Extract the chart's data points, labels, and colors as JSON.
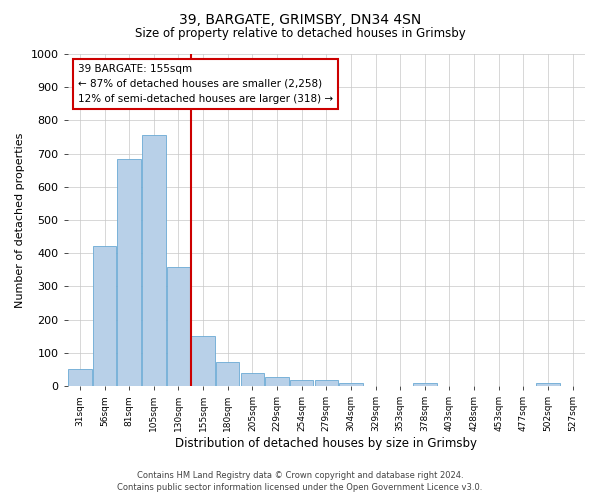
{
  "title": "39, BARGATE, GRIMSBY, DN34 4SN",
  "subtitle": "Size of property relative to detached houses in Grimsby",
  "xlabel": "Distribution of detached houses by size in Grimsby",
  "ylabel": "Number of detached properties",
  "bar_color": "#b8d0e8",
  "bar_edge_color": "#6aaad4",
  "background_color": "#ffffff",
  "grid_color": "#c8c8c8",
  "vline_x": 4,
  "vline_color": "#cc0000",
  "annotation_text": "39 BARGATE: 155sqm\n← 87% of detached houses are smaller (2,258)\n12% of semi-detached houses are larger (318) →",
  "annotation_box_color": "#cc0000",
  "footer1": "Contains HM Land Registry data © Crown copyright and database right 2024.",
  "footer2": "Contains public sector information licensed under the Open Government Licence v3.0.",
  "categories": [
    "31sqm",
    "56sqm",
    "81sqm",
    "105sqm",
    "130sqm",
    "155sqm",
    "180sqm",
    "205sqm",
    "229sqm",
    "254sqm",
    "279sqm",
    "304sqm",
    "329sqm",
    "353sqm",
    "378sqm",
    "403sqm",
    "428sqm",
    "453sqm",
    "477sqm",
    "502sqm",
    "527sqm"
  ],
  "counts": [
    50,
    422,
    685,
    757,
    360,
    152,
    73,
    40,
    27,
    18,
    18,
    10,
    0,
    0,
    8,
    0,
    0,
    0,
    0,
    10,
    0
  ],
  "ylim": [
    0,
    1000
  ],
  "yticks": [
    0,
    100,
    200,
    300,
    400,
    500,
    600,
    700,
    800,
    900,
    1000
  ]
}
